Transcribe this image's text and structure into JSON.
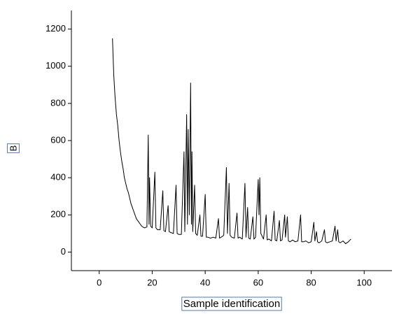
{
  "chart_data": {
    "type": "line",
    "x_label": "Sample identification",
    "y_label": "B",
    "xlim": [
      -10.5,
      110.5
    ],
    "ylim": [
      -100,
      1300
    ],
    "xticks": [
      0,
      20,
      40,
      60,
      80,
      100
    ],
    "yticks": [
      0,
      200,
      400,
      600,
      800,
      1000,
      1200
    ],
    "x": [
      5,
      5.5,
      6,
      6.5,
      7,
      7.5,
      8,
      8.5,
      9,
      9.5,
      10,
      10.5,
      11,
      12,
      13,
      14,
      15,
      16,
      17,
      18,
      18.5,
      18.8,
      19,
      19.4,
      20,
      21,
      21.4,
      22,
      23,
      24,
      24.4,
      25,
      26,
      26.4,
      27,
      28,
      29,
      29.4,
      30,
      31,
      32,
      32.3,
      33,
      33.3,
      33.6,
      34,
      34.5,
      34.8,
      35,
      35.3,
      36,
      36.4,
      37,
      38,
      38.4,
      39,
      40,
      40.4,
      41,
      42,
      43,
      44,
      45,
      45.4,
      46,
      47,
      48,
      48.4,
      49,
      49.4,
      50,
      51,
      52,
      52.4,
      53,
      54,
      55,
      55.4,
      56,
      56.4,
      57,
      58,
      58.4,
      59,
      60,
      60.3,
      60.6,
      61,
      62,
      63,
      63.4,
      64,
      65,
      66,
      66.4,
      67,
      68,
      68.4,
      69,
      70,
      70.3,
      71,
      71.4,
      72,
      73,
      74,
      75,
      76,
      76.4,
      77,
      78,
      79,
      80,
      81,
      81.4,
      82,
      82.4,
      83,
      84,
      85,
      85.4,
      86,
      87,
      88,
      89,
      89.4,
      90,
      90.4,
      91,
      92,
      93,
      94,
      95
    ],
    "series": [
      {
        "color": "#000000",
        "values": [
          1150,
          950,
          830,
          740,
          680,
          600,
          540,
          490,
          450,
          400,
          370,
          340,
          320,
          260,
          220,
          180,
          160,
          140,
          130,
          135,
          630,
          150,
          400,
          140,
          130,
          430,
          130,
          120,
          120,
          330,
          115,
          110,
          250,
          110,
          105,
          100,
          360,
          100,
          95,
          95,
          540,
          110,
          740,
          150,
          660,
          200,
          910,
          150,
          540,
          110,
          360,
          100,
          90,
          200,
          85,
          85,
          310,
          80,
          80,
          75,
          80,
          75,
          180,
          75,
          80,
          90,
          455,
          100,
          370,
          90,
          80,
          75,
          210,
          75,
          80,
          70,
          370,
          80,
          240,
          75,
          70,
          190,
          70,
          80,
          390,
          200,
          400,
          100,
          70,
          200,
          65,
          70,
          60,
          220,
          65,
          60,
          170,
          60,
          65,
          200,
          80,
          190,
          60,
          55,
          65,
          55,
          60,
          200,
          55,
          55,
          60,
          50,
          55,
          160,
          60,
          110,
          55,
          50,
          60,
          120,
          55,
          50,
          55,
          60,
          140,
          60,
          120,
          55,
          50,
          60,
          45,
          55,
          70
        ]
      }
    ]
  }
}
